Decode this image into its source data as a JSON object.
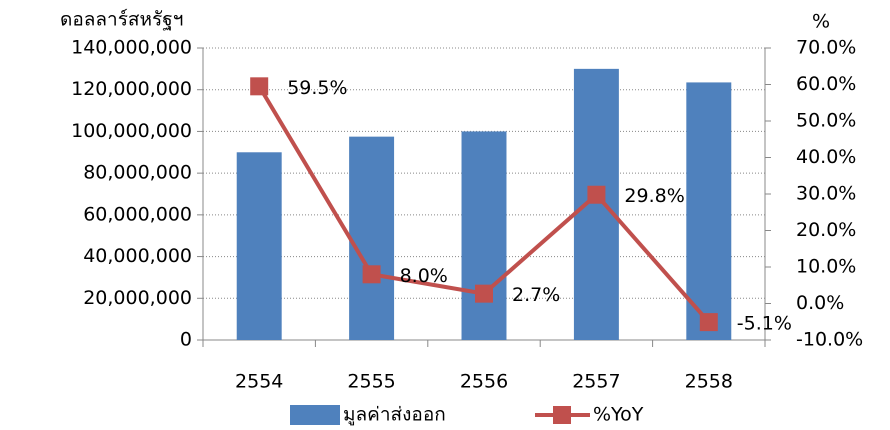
{
  "chart_data": {
    "type": "bar",
    "y_label": "ดอลลาร์สหรัฐฯ",
    "y2_label": "%",
    "categories": [
      "2554",
      "2555",
      "2556",
      "2557",
      "2558"
    ],
    "series": [
      {
        "name": "มูลค่าส่งออก",
        "type": "bar",
        "color": "#4f81bd",
        "values": [
          90000000,
          97500000,
          100000000,
          130000000,
          123500000
        ]
      },
      {
        "name": "%YoY",
        "type": "line",
        "axis": "y2",
        "color": "#c0504d",
        "label_color": "#ff0000",
        "values": [
          59.5,
          8.0,
          2.7,
          29.8,
          -5.1
        ],
        "value_labels": [
          "59.5%",
          "8.0%",
          "2.7%",
          "29.8%",
          "-5.1%"
        ]
      }
    ],
    "ylim": [
      0,
      140000000
    ],
    "yticks": [
      {
        "value": 0,
        "label": "0"
      },
      {
        "value": 20000000,
        "label": "20,000,000"
      },
      {
        "value": 40000000,
        "label": "40,000,000"
      },
      {
        "value": 60000000,
        "label": "60,000,000"
      },
      {
        "value": 80000000,
        "label": "80,000,000"
      },
      {
        "value": 100000000,
        "label": "100,000,000"
      },
      {
        "value": 120000000,
        "label": "120,000,000"
      },
      {
        "value": 140000000,
        "label": "140,000,000"
      }
    ],
    "y2lim": [
      -10,
      70
    ],
    "y2ticks": [
      {
        "value": -10,
        "label": "-10.0%"
      },
      {
        "value": 0,
        "label": "0.0%"
      },
      {
        "value": 10,
        "label": "10.0%"
      },
      {
        "value": 20,
        "label": "20.0%"
      },
      {
        "value": 30,
        "label": "30.0%"
      },
      {
        "value": 40,
        "label": "40.0%"
      },
      {
        "value": 50,
        "label": "50.0%"
      },
      {
        "value": 60,
        "label": "60.0%"
      },
      {
        "value": 70,
        "label": "70.0%"
      }
    ],
    "grid": true,
    "legend": "bottom"
  }
}
